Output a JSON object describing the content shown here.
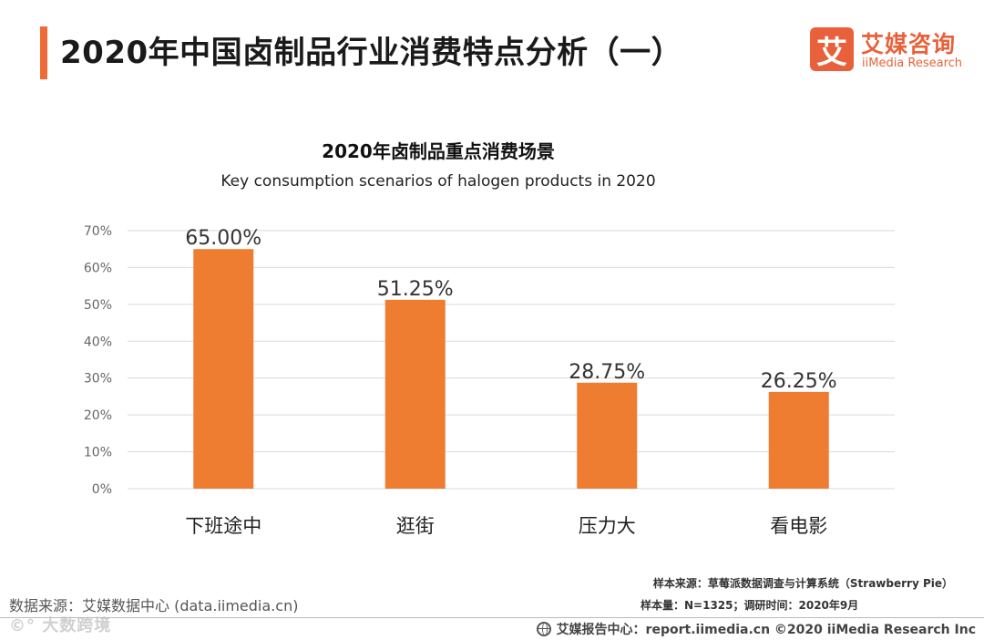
{
  "header": {
    "title": "2020年中国卤制品行业消费特点分析（一）",
    "accent_color": "#ee6b38"
  },
  "logo": {
    "mark": "艾",
    "name_cn": "艾媒咨询",
    "name_en": "iiMedia Research",
    "color": "#e8613a"
  },
  "chart_data": {
    "type": "bar",
    "title": "2020年卤制品重点消费场景",
    "subtitle": "Key consumption scenarios of halogen products in 2020",
    "categories": [
      "下班途中",
      "逛街",
      "压力大",
      "看电影"
    ],
    "values": [
      65.0,
      51.25,
      28.75,
      26.25
    ],
    "value_labels": [
      "65.00%",
      "51.25%",
      "28.75%",
      "26.25%"
    ],
    "yticks": [
      0,
      10,
      20,
      30,
      40,
      50,
      60,
      70
    ],
    "ytick_labels": [
      "0%",
      "10%",
      "20%",
      "30%",
      "40%",
      "50%",
      "60%",
      "70%"
    ],
    "ylim": [
      0,
      70
    ],
    "xlabel": "",
    "ylabel": "",
    "grid": true,
    "bar_color": "#ee7d32"
  },
  "source": {
    "left": "数据来源：艾媒数据中心 (data.iimedia.cn)",
    "watermark": "©° 大数跨境",
    "sample_source": "样本来源：草莓派数据调查与计算系统（Strawberry Pie）",
    "sample_size": "样本量：N=1325；调研时间：2020年9月",
    "footer": "艾媒报告中心：report.iimedia.cn  ©2020  iiMedia Research Inc"
  }
}
